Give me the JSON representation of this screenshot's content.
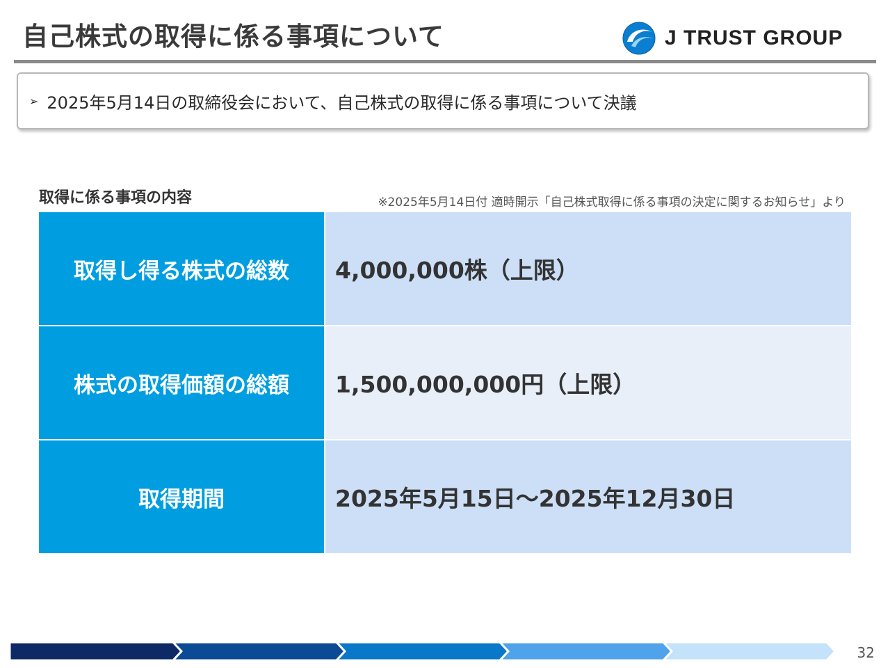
{
  "header": {
    "title": "自己株式の取得に係る事項について",
    "logo_text": "J TRUST GROUP",
    "logo_icon": "j-trust-wave-logo-icon"
  },
  "summary": {
    "bullet": "➢",
    "text": "2025年5月14日の取締役会において、自己株式の取得に係る事項について決議"
  },
  "section": {
    "label": "取得に係る事項の内容",
    "source_note": "※2025年5月14日付 適時開示「自己株式取得に係る事項の決定に関するお知らせ」より"
  },
  "table": {
    "rows": [
      {
        "header": "取得し得る株式の総数",
        "value": "4,000,000株（上限）"
      },
      {
        "header": "株式の取得価額の総額",
        "value": "1,500,000,000円（上限）"
      },
      {
        "header": "取得期間",
        "value": "2025年5月15日～2025年12月30日"
      }
    ]
  },
  "footer": {
    "page_number": "32",
    "bar_colors": [
      "#0d2a66",
      "#0b4a95",
      "#0a78c8",
      "#4fa3ea",
      "#c4e3fa"
    ]
  },
  "colors": {
    "table_header_bg": "#009ee0",
    "table_value_bg_odd": "#ccdff6",
    "table_value_bg_even": "#e8eff9"
  }
}
